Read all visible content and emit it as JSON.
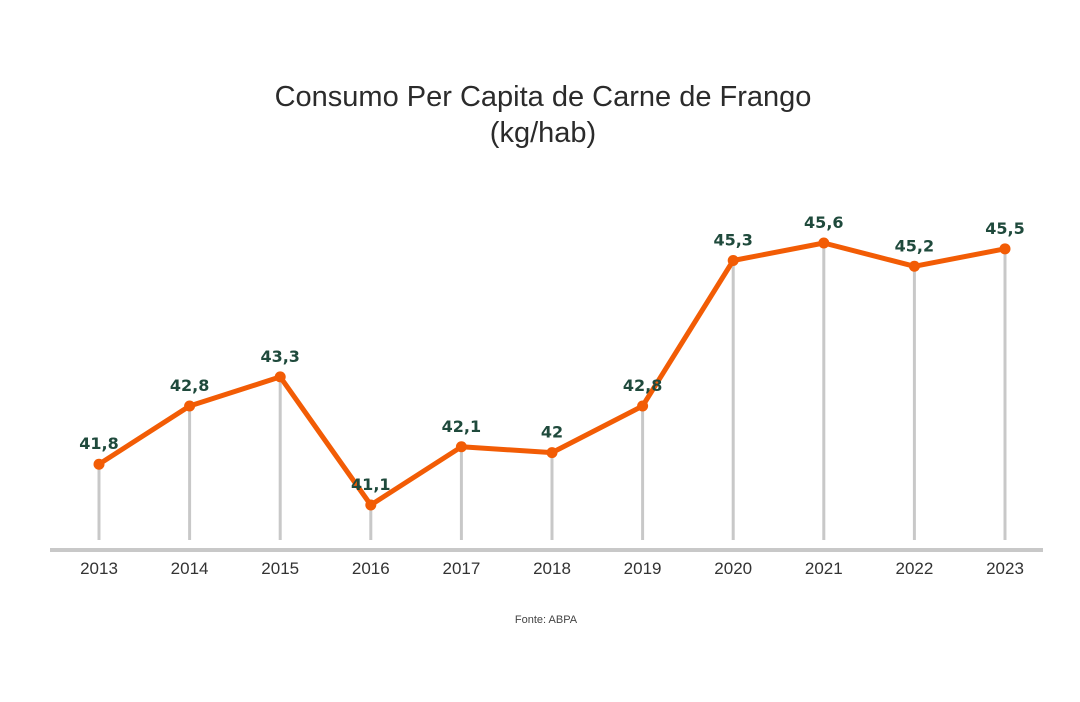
{
  "chart_data": {
    "type": "line",
    "title": "Consumo Per Capita de Carne de Frango",
    "subtitle": "(kg/hab)",
    "source": "Fonte: ABPA",
    "categories": [
      "2013",
      "2014",
      "2015",
      "2016",
      "2017",
      "2018",
      "2019",
      "2020",
      "2021",
      "2022",
      "2023"
    ],
    "values": [
      41.8,
      42.8,
      43.3,
      41.1,
      42.1,
      42.0,
      42.8,
      45.3,
      45.6,
      45.2,
      45.5
    ],
    "value_labels": [
      "41,8",
      "42,8",
      "43,3",
      "41,1",
      "42,1",
      "42",
      "42,8",
      "45,3",
      "45,6",
      "45,2",
      "45,5"
    ],
    "ylim": [
      39.9,
      46.3
    ],
    "grid": false,
    "legend": "none",
    "colors": {
      "line": "#f25c05",
      "drop_lines": "#c8c8c8",
      "axis": "#c8c8c8",
      "value_labels": "#1f4a3c"
    }
  }
}
